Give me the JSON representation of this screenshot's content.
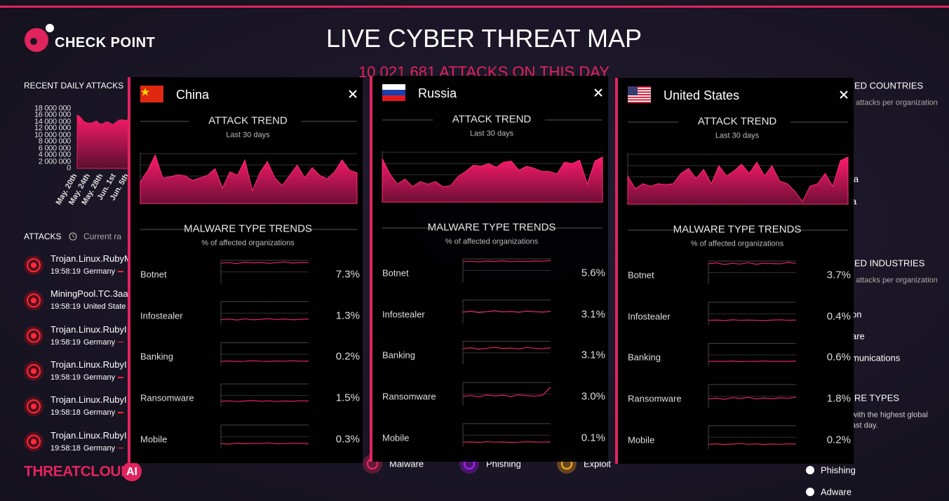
{
  "header": {
    "logo": "CHECK POINT",
    "title": "LIVE CYBER THREAT MAP",
    "subtitle": "10 021 681 ATTACKS ON THIS DAY"
  },
  "daily_attacks": {
    "title": "RECENT DAILY ATTACKS",
    "type": "area",
    "color": "#e0245e",
    "categories": [
      "May. 20th",
      null,
      null,
      null,
      "May. 24th",
      null,
      null,
      null,
      "May. 28th",
      null,
      null,
      null,
      "Jun. 1st",
      null,
      null,
      null,
      "Jun. 5th"
    ],
    "values": [
      16200000,
      15500000,
      14200000,
      13800000,
      13600000,
      13900000,
      14300000,
      13400000,
      13500000,
      14100000,
      13800000,
      13200000,
      13900000,
      14600000,
      14700000,
      14400000,
      14800000
    ],
    "ylim": [
      0,
      18000000
    ],
    "yticks": [
      0,
      {
        "value": 2000000,
        "label": "2 000 000"
      },
      {
        "value": 4000000,
        "label": "4 000 000"
      },
      {
        "value": 6000000,
        "label": "6 000 000"
      },
      {
        "value": 8000000,
        "label": "8 000 000"
      },
      {
        "value": 10000000,
        "label": "10 000 000"
      },
      {
        "value": 12000000,
        "label": "12 000 000"
      },
      {
        "value": 14000000,
        "label": "14 000 000"
      },
      {
        "value": 16000000,
        "label": "16 000 000"
      },
      {
        "value": 18000000,
        "label": "18 000 000"
      }
    ]
  },
  "attacks": {
    "title": "ATTACKS",
    "rate": "Current ra",
    "items": [
      {
        "name": "Trojan.Linux.RubyM",
        "time": "19:58:19",
        "country": "Germany"
      },
      {
        "name": "MiningPool.TC.3aa",
        "time": "19:58:19",
        "country": "United State"
      },
      {
        "name": "Trojan.Linux.RubyI",
        "time": "19:58:19",
        "country": "Germany"
      },
      {
        "name": "Trojan.Linux.RubyI",
        "time": "19:58:19",
        "country": "Germany"
      },
      {
        "name": "Trojan.Linux.RubyI",
        "time": "19:58:18",
        "country": "Germany"
      },
      {
        "name": "Trojan.Linux.RubyI",
        "time": "19:58:18",
        "country": "Germany"
      }
    ]
  },
  "side_panel": {
    "countries_title": "ED COUNTRIES",
    "countries_note": "f attacks per organization",
    "countries": [
      "ia",
      "a"
    ],
    "industries_title": "ED INDUSTRIES",
    "industries_note": "f attacks per organization",
    "industries": [
      "on",
      "are",
      "munications"
    ],
    "types_title": "RE TYPES",
    "types_note": [
      "with the highest global",
      "ast day."
    ],
    "types": [
      "Phishing",
      "Adware"
    ]
  },
  "legend": {
    "items": [
      "Malware",
      "Phishing",
      "Exploit"
    ],
    "colors": [
      "#e0245e",
      "#a020f0",
      "#f0a020"
    ]
  },
  "threatcloud": {
    "name": "THREATCLOUD",
    "suffix": "AI"
  },
  "popups": [
    {
      "country": "China",
      "attack_trend": {
        "title": "ATTACK TREND",
        "subtitle": "Last 30 days",
        "ylim": [
          0,
          100
        ],
        "values": [
          42,
          65,
          95,
          50,
          52,
          56,
          54,
          45,
          50,
          55,
          68,
          30,
          62,
          55,
          85,
          25,
          60,
          82,
          50,
          35,
          55,
          75,
          50,
          70,
          55,
          48,
          62,
          85,
          65,
          60
        ]
      },
      "malware": {
        "title": "MALWARE TYPE TRENDS",
        "subtitle": "% of affected organizations",
        "rows": [
          {
            "name": "Botnet",
            "value": "7.3%",
            "trend": [
              88,
              90,
              86,
              92,
              89,
              91,
              87,
              90,
              93,
              88,
              91,
              90
            ]
          },
          {
            "name": "Infostealer",
            "value": "1.3%",
            "trend": [
              22,
              24,
              20,
              25,
              21,
              23,
              26,
              22,
              24,
              21,
              23,
              24
            ]
          },
          {
            "name": "Banking",
            "value": "0.2%",
            "trend": [
              20,
              21,
              19,
              20,
              22,
              20,
              19,
              21,
              20,
              22,
              20,
              21
            ]
          },
          {
            "name": "Ransomware",
            "value": "1.5%",
            "trend": [
              25,
              27,
              24,
              26,
              28,
              25,
              27,
              24,
              26,
              25,
              27,
              26
            ]
          },
          {
            "name": "Mobile",
            "value": "0.3%",
            "trend": [
              20,
              18,
              22,
              19,
              21,
              20,
              23,
              19,
              20,
              22,
              21,
              19
            ]
          }
        ]
      }
    },
    {
      "country": "Russia",
      "attack_trend": {
        "title": "ATTACK TREND",
        "subtitle": "Last 30 days",
        "ylim": [
          0,
          100
        ],
        "values": [
          85,
          55,
          35,
          45,
          30,
          40,
          35,
          40,
          30,
          32,
          50,
          60,
          72,
          70,
          75,
          68,
          78,
          80,
          62,
          70,
          66,
          60,
          60,
          55,
          78,
          75,
          82,
          35,
          80,
          88
        ]
      },
      "malware": {
        "title": "MALWARE TYPE TRENDS",
        "subtitle": "% of affected organizations",
        "rows": [
          {
            "name": "Botnet",
            "value": "5.6%",
            "trend": [
              88,
              90,
              87,
              91,
              89,
              92,
              88,
              90,
              89,
              91,
              90,
              93
            ]
          },
          {
            "name": "Infostealer",
            "value": "3.1%",
            "trend": [
              48,
              52,
              46,
              50,
              55,
              49,
              51,
              47,
              53,
              50,
              48,
              52
            ]
          },
          {
            "name": "Banking",
            "value": "3.1%",
            "trend": [
              68,
              72,
              66,
              70,
              74,
              69,
              71,
              67,
              73,
              70,
              68,
              72
            ]
          },
          {
            "name": "Ransomware",
            "value": "3.0%",
            "trend": [
              40,
              44,
              38,
              46,
              42,
              45,
              39,
              47,
              43,
              41,
              45,
              80
            ]
          },
          {
            "name": "Mobile",
            "value": "0.1%",
            "trend": [
              20,
              21,
              19,
              22,
              20,
              21,
              19,
              20,
              22,
              21,
              20,
              21
            ]
          }
        ]
      }
    },
    {
      "country": "United States",
      "attack_trend": {
        "title": "ATTACK TREND",
        "subtitle": "Last 30 days",
        "ylim": [
          0,
          100
        ],
        "values": [
          55,
          30,
          40,
          35,
          40,
          38,
          40,
          60,
          70,
          50,
          68,
          40,
          75,
          55,
          65,
          78,
          60,
          82,
          55,
          75,
          45,
          40,
          25,
          5,
          35,
          40,
          60,
          35,
          85,
          92
        ]
      },
      "malware": {
        "title": "MALWARE TYPE TRENDS",
        "subtitle": "% of affected organizations",
        "rows": [
          {
            "name": "Botnet",
            "value": "3.7%",
            "trend": [
              88,
              92,
              85,
              90,
              87,
              93,
              86,
              91,
              89,
              88,
              94,
              90
            ]
          },
          {
            "name": "Infostealer",
            "value": "0.4%",
            "trend": [
              22,
              23,
              21,
              24,
              22,
              23,
              22,
              21,
              23,
              24,
              22,
              23
            ]
          },
          {
            "name": "Banking",
            "value": "0.6%",
            "trend": [
              22,
              23,
              22,
              24,
              21,
              23,
              22,
              24,
              22,
              23,
              22,
              24
            ]
          },
          {
            "name": "Ransomware",
            "value": "1.8%",
            "trend": [
              38,
              42,
              36,
              44,
              40,
              45,
              38,
              42,
              39,
              43,
              41,
              46
            ]
          },
          {
            "name": "Mobile",
            "value": "0.2%",
            "trend": [
              20,
              22,
              19,
              21,
              23,
              20,
              22,
              19,
              21,
              20,
              22,
              21
            ]
          }
        ]
      }
    }
  ]
}
